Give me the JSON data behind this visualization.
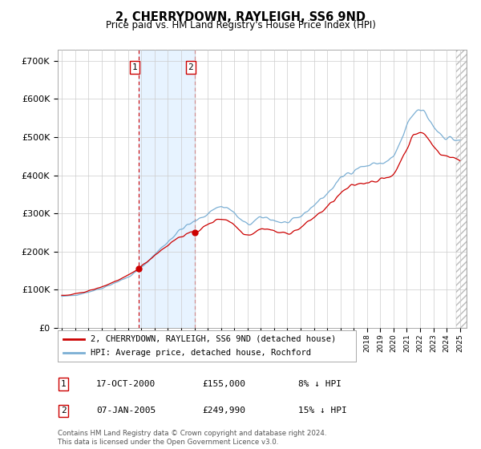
{
  "title": "2, CHERRYDOWN, RAYLEIGH, SS6 9ND",
  "subtitle": "Price paid vs. HM Land Registry's House Price Index (HPI)",
  "legend_line1": "2, CHERRYDOWN, RAYLEIGH, SS6 9ND (detached house)",
  "legend_line2": "HPI: Average price, detached house, Rochford",
  "footer": "Contains HM Land Registry data © Crown copyright and database right 2024.\nThis data is licensed under the Open Government Licence v3.0.",
  "transaction1_label": "1",
  "transaction1_date": "17-OCT-2000",
  "transaction1_price": "£155,000",
  "transaction1_hpi": "8% ↓ HPI",
  "transaction2_label": "2",
  "transaction2_date": "07-JAN-2005",
  "transaction2_price": "£249,990",
  "transaction2_hpi": "15% ↓ HPI",
  "sale1_year": 2000.79,
  "sale1_price": 155000,
  "sale2_year": 2005.02,
  "sale2_price": 249990,
  "hpi_color": "#7bafd4",
  "price_color": "#cc0000",
  "shade_color": "#ddeeff",
  "vline_color": "#cc0000",
  "background_color": "#ffffff",
  "grid_color": "#cccccc",
  "yticks": [
    0,
    100000,
    200000,
    300000,
    400000,
    500000,
    600000,
    700000
  ],
  "ylabels": [
    "£0",
    "£100K",
    "£200K",
    "£300K",
    "£400K",
    "£500K",
    "£600K",
    "£700K"
  ],
  "ylim": [
    0,
    730000
  ],
  "xlim_start": 1994.7,
  "xlim_end": 2025.5
}
